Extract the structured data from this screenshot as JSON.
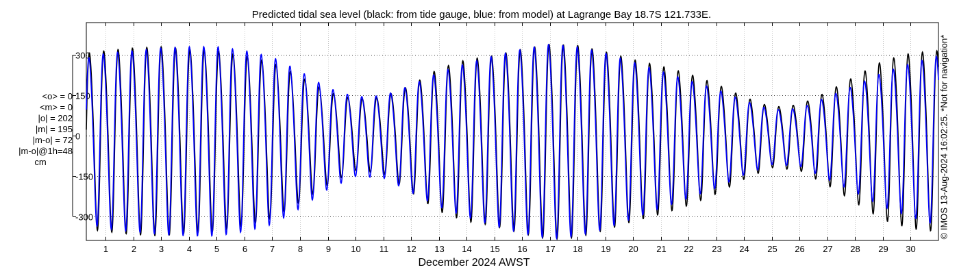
{
  "chart_data": {
    "type": "line",
    "title": "Predicted tidal sea level (black: from tide gauge, blue: from model) at Lagrange Bay 18.7S 121.733E.",
    "xlabel": "December 2024 AWST",
    "ylabel": "",
    "x_ticks": [
      "1",
      "2",
      "3",
      "4",
      "5",
      "6",
      "7",
      "8",
      "9",
      "10",
      "11",
      "12",
      "13",
      "14",
      "15",
      "16",
      "17",
      "18",
      "19",
      "20",
      "21",
      "22",
      "23",
      "24",
      "25",
      "26",
      "27",
      "28",
      "29",
      "30"
    ],
    "x_range_days": [
      0.3,
      31.0
    ],
    "y_ticks": [
      300,
      150,
      0,
      -150,
      -300
    ],
    "y_tick_labels": [
      "300",
      "150",
      "0",
      "-150",
      "-300"
    ],
    "ylim": [
      -390,
      420
    ],
    "grid": true,
    "series": [
      {
        "name": "from tide gauge",
        "color": "#000000",
        "model": "semi-diurnal tide, amplitude envelope by day (cm)",
        "envelope_days": [
          0.3,
          1,
          2,
          3,
          4,
          5,
          6,
          7,
          8,
          9,
          10,
          11,
          12,
          13,
          14,
          15,
          16,
          17,
          18,
          19,
          20,
          21,
          22,
          23,
          24,
          25,
          26,
          27,
          28,
          29,
          30,
          31
        ],
        "envelope_amp": [
          320,
          330,
          340,
          345,
          335,
          330,
          310,
          285,
          230,
          170,
          130,
          140,
          195,
          260,
          295,
          310,
          335,
          355,
          350,
          325,
          295,
          270,
          240,
          200,
          150,
          110,
          120,
          170,
          230,
          290,
          320,
          330
        ],
        "envelope_mean": [
          0,
          0,
          0,
          0,
          0,
          0,
          0,
          0,
          0,
          0,
          10,
          10,
          0,
          0,
          0,
          0,
          0,
          0,
          0,
          0,
          0,
          0,
          0,
          0,
          0,
          0,
          0,
          0,
          0,
          0,
          0,
          0
        ]
      },
      {
        "name": "from model",
        "color": "#0000ff",
        "model": "semi-diurnal tide, amplitude envelope by day (cm)",
        "envelope_days": [
          0.3,
          1,
          2,
          3,
          4,
          5,
          6,
          7,
          8,
          9,
          10,
          11,
          12,
          13,
          14,
          15,
          16,
          17,
          18,
          19,
          20,
          21,
          22,
          23,
          24,
          25,
          26,
          27,
          28,
          29,
          30,
          31
        ],
        "envelope_amp": [
          300,
          320,
          330,
          340,
          345,
          345,
          330,
          305,
          250,
          185,
          145,
          150,
          195,
          245,
          280,
          310,
          335,
          355,
          345,
          320,
          285,
          250,
          215,
          180,
          135,
          100,
          105,
          150,
          195,
          245,
          280,
          310
        ],
        "envelope_mean": [
          0,
          0,
          0,
          0,
          0,
          0,
          0,
          0,
          0,
          0,
          5,
          5,
          0,
          0,
          0,
          0,
          0,
          0,
          0,
          0,
          0,
          0,
          0,
          0,
          0,
          0,
          0,
          0,
          0,
          0,
          0,
          0
        ]
      }
    ],
    "stats": {
      "mean_o": "<o> = 0",
      "mean_m": "<m> = 0",
      "abs_o": "|o| = 202",
      "abs_m": "|m| = 195",
      "abs_diff": "|m-o| = 72",
      "abs_diff_1h": "|m-o|@1h=48",
      "unit": "cm"
    },
    "copyright": "© IMOS 13-Aug-2024 16:02:25. *Not for navigation*"
  }
}
